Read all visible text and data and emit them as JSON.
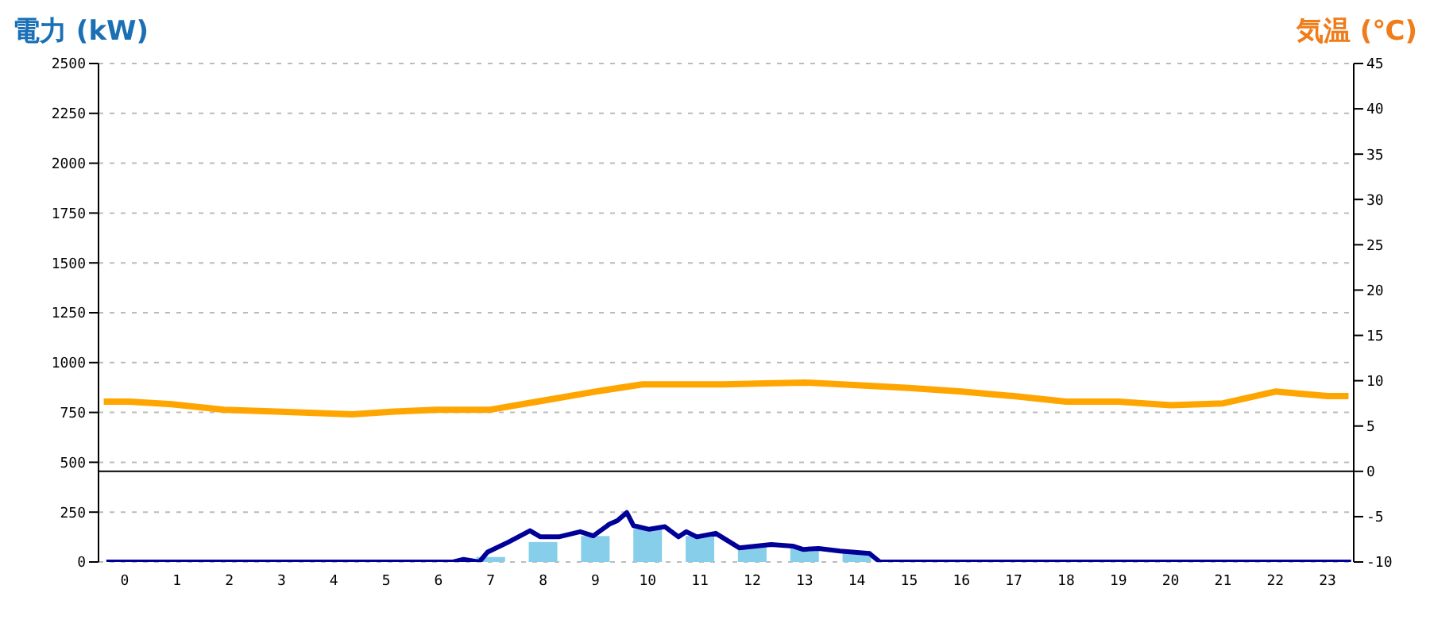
{
  "chart_data": {
    "type": "bar",
    "ylabel": "電力 (kW)",
    "y2label": "気温 (℃)",
    "x": [
      0,
      1,
      2,
      3,
      4,
      5,
      6,
      7,
      8,
      9,
      10,
      11,
      12,
      13,
      14,
      15,
      16,
      17,
      18,
      19,
      20,
      21,
      22,
      23
    ],
    "series": [
      {
        "color": "#87ceeb",
        "values": [
          0,
          0,
          0,
          0,
          0,
          0,
          0,
          25,
          100,
          130,
          165,
          130,
          80,
          70,
          55,
          0,
          0,
          0,
          0,
          0,
          0,
          0,
          0,
          0
        ]
      },
      {
        "type": "line",
        "color": "#000099",
        "x": [
          -0.35,
          5.26,
          6.28,
          6.48,
          6.78,
          6.94,
          7.34,
          7.75,
          7.95,
          8.3,
          8.71,
          8.96,
          9.27,
          9.42,
          9.6,
          9.73,
          10.03,
          10.33,
          10.59,
          10.74,
          10.94,
          11.3,
          11.75,
          12.36,
          12.77,
          12.97,
          13.27,
          13.68,
          14.24,
          14.44,
          23.45
        ],
        "values": [
          0,
          0,
          0,
          13,
          0,
          50,
          100,
          157,
          126,
          126,
          152,
          131,
          190,
          207,
          248,
          182,
          164,
          177,
          126,
          152,
          126,
          144,
          71,
          88,
          80,
          63,
          68,
          55,
          43,
          0,
          0
        ]
      },
      {
        "type": "line",
        "axis": "y2",
        "color": "#ffa500",
        "x": [
          -0.4,
          0.09,
          0.9,
          1.9,
          2.9,
          4.35,
          5.16,
          5.97,
          6.99,
          8,
          9,
          9.9,
          11.45,
          12.26,
          13,
          14,
          15,
          16,
          17,
          18,
          19,
          20,
          21,
          22,
          23,
          23.4
        ],
        "values": [
          7.7,
          7.7,
          7.4,
          6.8,
          6.6,
          6.3,
          6.6,
          6.8,
          6.8,
          7.8,
          8.8,
          9.6,
          9.6,
          9.7,
          9.8,
          9.5,
          9.2,
          8.8,
          8.3,
          7.7,
          7.7,
          7.3,
          7.5,
          8.8,
          8.3,
          8.3
        ]
      }
    ],
    "xlim": [
      -0.5,
      23.5
    ],
    "xticks": [
      0,
      1,
      2,
      3,
      4,
      5,
      6,
      7,
      8,
      9,
      10,
      11,
      12,
      13,
      14,
      15,
      16,
      17,
      18,
      19,
      20,
      21,
      22,
      23
    ],
    "ylim": [
      0,
      2500
    ],
    "yticks": [
      0,
      250,
      500,
      750,
      1000,
      1250,
      1500,
      1750,
      2000,
      2250,
      2500
    ],
    "y2lim": [
      -10,
      45
    ],
    "y2ticks": [
      -10,
      -5,
      0,
      5,
      10,
      15,
      20,
      25,
      30,
      35,
      40,
      45
    ],
    "grid": "y",
    "marker": "none",
    "ref_lines": [
      {
        "axis": "y2",
        "value": 0,
        "color": "#000000"
      }
    ]
  }
}
